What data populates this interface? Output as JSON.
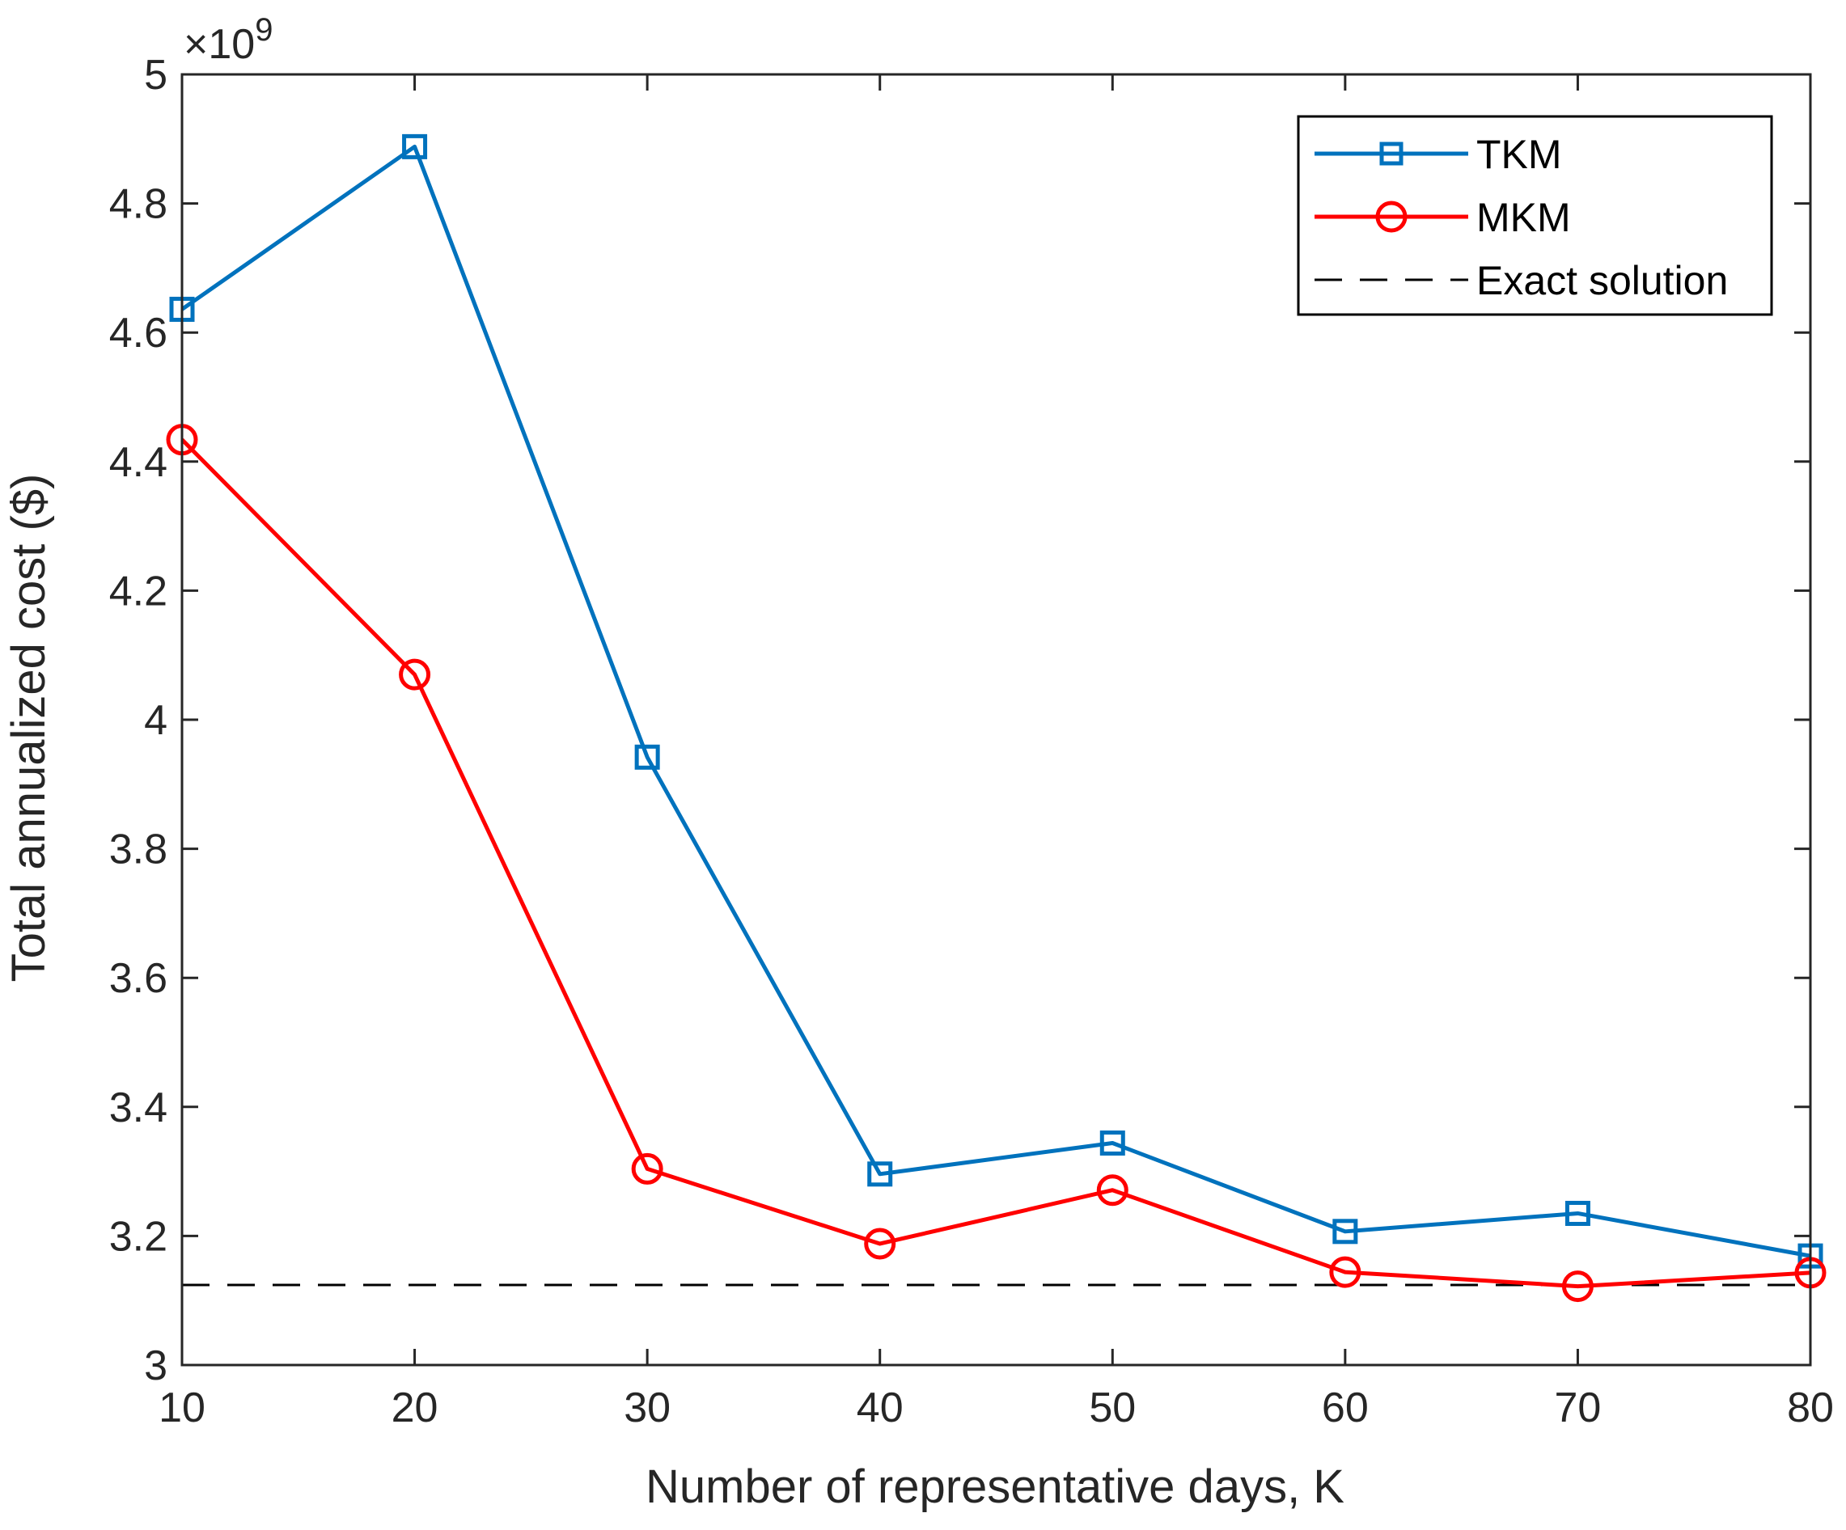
{
  "chart_data": {
    "type": "line",
    "title": "",
    "xlabel": "Number of representative days, K",
    "ylabel": "Total annualized cost ($)",
    "exponent_label": "×10",
    "exponent_power": "9",
    "x": [
      10,
      20,
      30,
      40,
      50,
      60,
      70,
      80
    ],
    "xlim": [
      10,
      80
    ],
    "ylim": [
      3,
      5
    ],
    "x_ticks": [
      10,
      20,
      30,
      40,
      50,
      60,
      70,
      80
    ],
    "x_tick_labels": [
      "10",
      "20",
      "30",
      "40",
      "50",
      "60",
      "70",
      "80"
    ],
    "y_ticks": [
      3,
      3.2,
      3.4,
      3.6,
      3.8,
      4,
      4.2,
      4.4,
      4.6,
      4.8,
      5
    ],
    "y_tick_labels": [
      "3",
      "3.2",
      "3.4",
      "3.6",
      "3.8",
      "4",
      "4.2",
      "4.4",
      "4.6",
      "4.8",
      "5"
    ],
    "grid": false,
    "legend_position": "top-right",
    "series": [
      {
        "name": "TKM",
        "color": "#0072BD",
        "marker": "square",
        "values": [
          4.636,
          4.888,
          3.942,
          3.296,
          3.344,
          3.207,
          3.235,
          3.169
        ]
      },
      {
        "name": "MKM",
        "color": "#FF0000",
        "marker": "circle",
        "values": [
          4.434,
          4.07,
          3.304,
          3.188,
          3.271,
          3.144,
          3.122,
          3.143
        ]
      }
    ],
    "reference_lines": [
      {
        "name": "Exact solution",
        "color": "#000000",
        "style": "dashed",
        "value": 3.124
      }
    ]
  }
}
